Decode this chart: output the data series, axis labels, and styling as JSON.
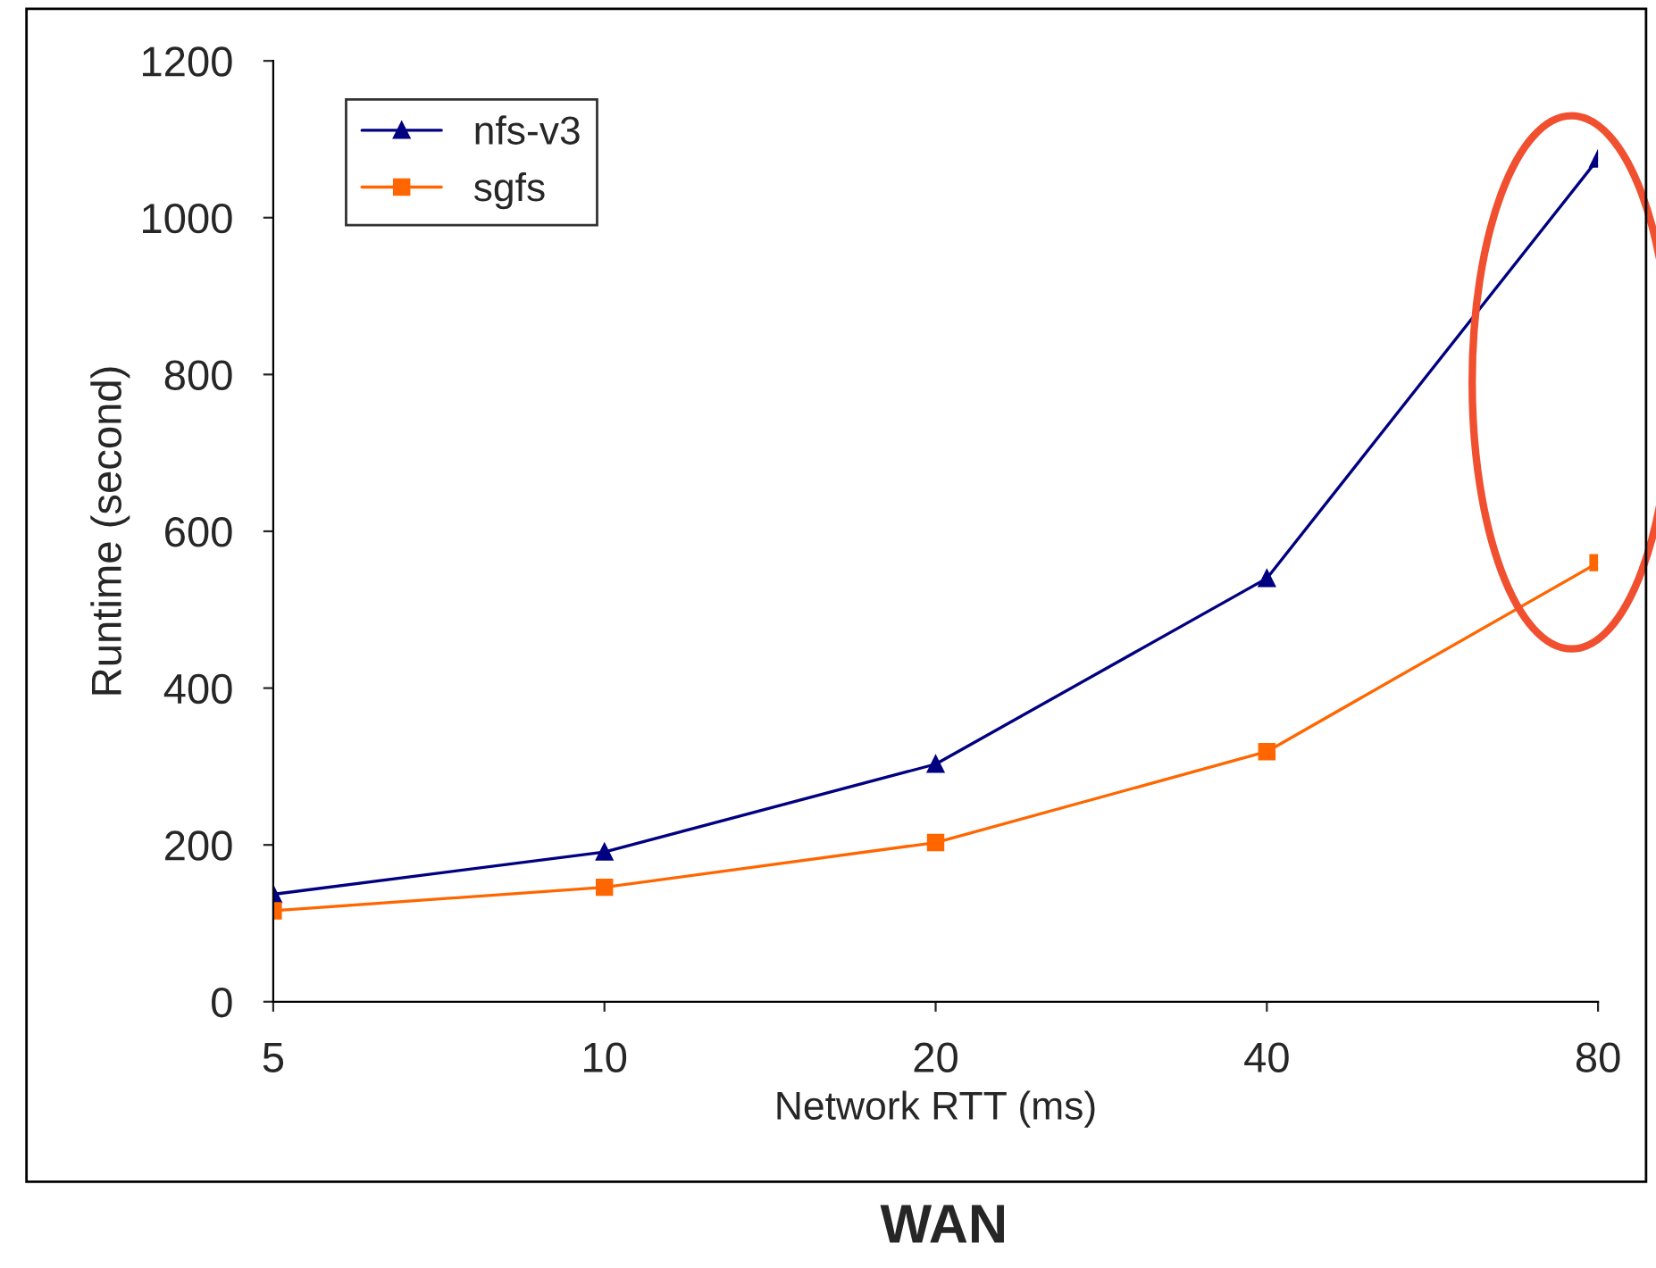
{
  "chart_data": {
    "type": "line",
    "title": "WAN",
    "xlabel": "Network RTT (ms)",
    "ylabel": "Runtime (second)",
    "categories": [
      "5",
      "10",
      "20",
      "40",
      "80"
    ],
    "series": [
      {
        "name": "nfs-v3",
        "color": "#000080",
        "marker": "triangle",
        "values": [
          137,
          191,
          303,
          540,
          1075
        ]
      },
      {
        "name": "sgfs",
        "color": "#ff6600",
        "marker": "square",
        "values": [
          116,
          146,
          203,
          319,
          560
        ]
      }
    ],
    "ylim": [
      0,
      1200
    ],
    "yticks": [
      0,
      200,
      400,
      600,
      800,
      1000,
      1200
    ],
    "grid": false,
    "legend": "top left",
    "line_style": "solid"
  }
}
